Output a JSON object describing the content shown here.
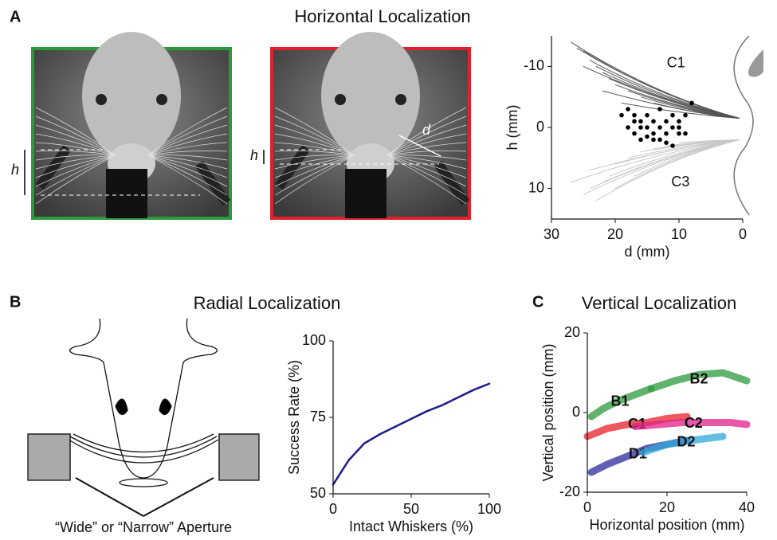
{
  "figure": {
    "panel_labels": [
      "A",
      "B",
      "C"
    ],
    "titles": [
      "Horizontal Localization",
      "Radial Localization"
    ],
    "photo_labels": [
      "h",
      "h",
      "d"
    ],
    "aperture_label": "“Wide” or “Narrow” Aperture"
  },
  "chart_data": [
    {
      "type": "scatter",
      "xlabel": "d (mm)",
      "ylabel": "h (mm)",
      "xlim": [
        0,
        30
      ],
      "ylim": [
        -15,
        15
      ],
      "x_inverted": true,
      "y_inverted": true,
      "xticks": [
        30,
        20,
        10,
        0
      ],
      "yticks": [
        -10,
        0,
        10
      ],
      "whiskers": [
        {
          "name": "C1",
          "color": "#555555",
          "base": [
            0.5,
            -1.5
          ],
          "x": [
            27,
            26,
            25,
            24,
            23,
            22,
            21,
            20,
            18,
            16,
            14,
            12,
            25,
            22,
            19
          ],
          "y": [
            -14,
            -13,
            -12.5,
            -11,
            -10,
            -9,
            -8,
            -7,
            -6,
            -5,
            -4,
            -3.5,
            -10,
            -6,
            -4
          ]
        },
        {
          "name": "C3",
          "color": "#c8c8c8",
          "base": [
            0.5,
            2
          ],
          "x": [
            25,
            24,
            23,
            22,
            21,
            20,
            18,
            16,
            14,
            12,
            10,
            24,
            20,
            17,
            27
          ],
          "y": [
            11,
            10,
            12,
            9,
            8,
            6,
            5,
            4,
            3.5,
            3,
            2.5,
            7,
            10,
            8,
            9
          ]
        }
      ],
      "points": {
        "color": "#000000",
        "x": [
          18,
          17,
          16,
          15,
          14,
          13,
          12,
          11,
          10,
          9,
          8,
          17,
          16,
          15,
          14,
          13,
          12,
          11,
          10,
          9,
          18,
          16,
          14,
          12,
          10,
          13,
          11,
          15,
          17,
          19
        ],
        "y": [
          -3,
          -2,
          -1,
          0,
          1,
          2,
          -1,
          0,
          1,
          -2,
          -4,
          1,
          2,
          -2,
          -1,
          0,
          1,
          -2,
          0,
          1,
          0,
          0,
          2,
          2.5,
          -1,
          -3,
          3,
          1.5,
          -1,
          -2
        ]
      }
    },
    {
      "type": "line",
      "xlabel": "Intact Whiskers (%)",
      "ylabel": "Success Rate (%)",
      "xlim": [
        0,
        100
      ],
      "ylim": [
        50,
        100
      ],
      "xticks": [
        0,
        50,
        100
      ],
      "yticks": [
        50,
        75,
        100
      ],
      "series": [
        {
          "color": "#1c1c8a",
          "x": [
            0,
            10,
            20,
            30,
            40,
            50,
            60,
            70,
            80,
            90,
            100
          ],
          "y": [
            53,
            61,
            66.5,
            69.5,
            72,
            74.5,
            77,
            79,
            81.5,
            84,
            86
          ]
        }
      ]
    },
    {
      "type": "line",
      "title": "Vertical Localization",
      "xlabel": "Horizontal position (mm)",
      "ylabel": "Vertical position (mm)",
      "xlim": [
        0,
        40
      ],
      "ylim": [
        -20,
        20
      ],
      "xticks": [
        0,
        20,
        40
      ],
      "yticks": [
        -20,
        0,
        20
      ],
      "series": [
        {
          "name": "B1",
          "color": "#2e9a3e",
          "x": [
            1,
            4,
            8,
            12,
            16
          ],
          "y": [
            -1,
            1,
            3,
            4.5,
            6
          ]
        },
        {
          "name": "B2",
          "color": "#2e9a3e",
          "x": [
            16,
            22,
            28,
            34,
            40
          ],
          "y": [
            6,
            8,
            9.5,
            10,
            8
          ]
        },
        {
          "name": "C1",
          "color": "#e8202a",
          "x": [
            0,
            5,
            10,
            15,
            20,
            25
          ],
          "y": [
            -6,
            -4,
            -3,
            -2.5,
            -1.5,
            -1
          ]
        },
        {
          "name": "C2",
          "color": "#e0208a",
          "x": [
            12,
            18,
            24,
            30,
            36,
            40
          ],
          "y": [
            -3.5,
            -3,
            -2.5,
            -2.5,
            -2.5,
            -3
          ]
        },
        {
          "name": "D1",
          "color": "#2a2a9a",
          "x": [
            1,
            5,
            10,
            15,
            20,
            25
          ],
          "y": [
            -15,
            -13,
            -11,
            -9,
            -8,
            -7
          ]
        },
        {
          "name": "D2",
          "color": "#30a8d8",
          "x": [
            14,
            20,
            26,
            30,
            34
          ],
          "y": [
            -10,
            -8,
            -7,
            -6.5,
            -6
          ]
        }
      ]
    }
  ]
}
